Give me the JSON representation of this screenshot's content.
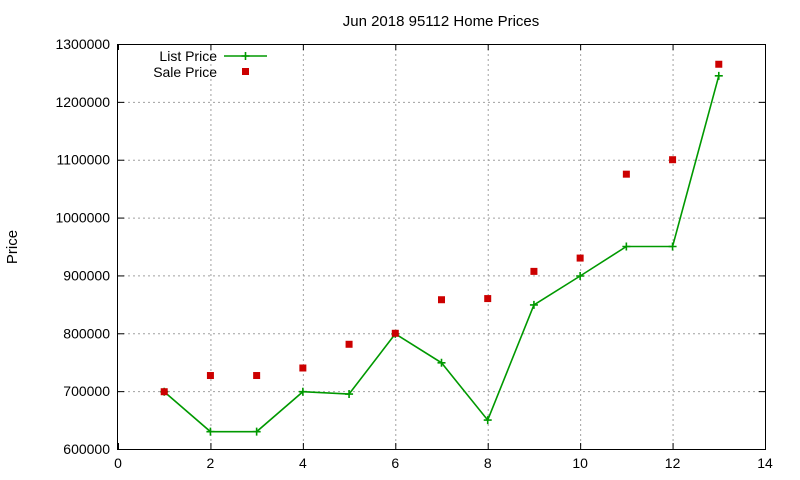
{
  "chart_data": {
    "type": "line",
    "title": "Jun 2018 95112 Home Prices",
    "xlabel": "",
    "ylabel": "Price",
    "xlim": [
      0,
      14
    ],
    "ylim": [
      600000,
      1300000
    ],
    "xticks": [
      0,
      2,
      4,
      6,
      8,
      10,
      12,
      14
    ],
    "yticks": [
      600000,
      700000,
      800000,
      900000,
      1000000,
      1100000,
      1200000,
      1300000
    ],
    "grid": true,
    "legend_position": "top-left",
    "series": [
      {
        "name": "List Price",
        "style": "line-with-plus-markers",
        "color": "#009900",
        "x": [
          1,
          2,
          3,
          4,
          5,
          6,
          7,
          8,
          9,
          10,
          11,
          12,
          13
        ],
        "y": [
          699000,
          630000,
          630000,
          699000,
          695000,
          799000,
          749000,
          650000,
          849000,
          899000,
          950000,
          950000,
          1245000
        ]
      },
      {
        "name": "Sale Price",
        "style": "square-markers",
        "color": "#cc0000",
        "x": [
          1,
          2,
          3,
          4,
          5,
          6,
          7,
          8,
          9,
          10,
          11,
          12,
          13
        ],
        "y": [
          699000,
          727000,
          727000,
          740000,
          781000,
          800000,
          858000,
          860000,
          907000,
          930000,
          1075000,
          1100000,
          1265000
        ]
      }
    ]
  }
}
